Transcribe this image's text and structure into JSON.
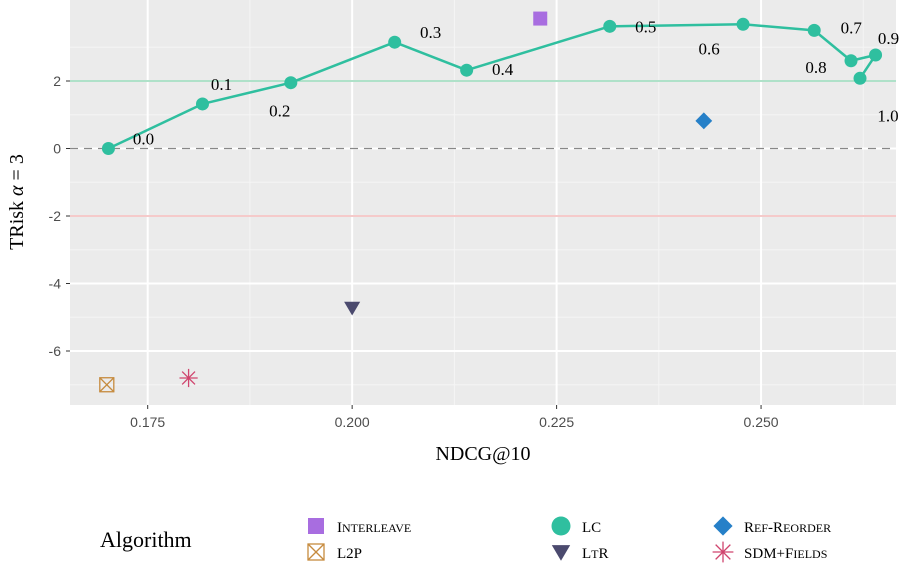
{
  "chart_data": {
    "type": "scatter",
    "xlabel": "NDCG@10",
    "ylabel_text": "TRisk ",
    "ylabel_alpha": "α",
    "ylabel_eq": " = 3",
    "xlim": [
      0.1655,
      0.2665
    ],
    "ylim": [
      -7.6,
      4.4
    ],
    "x_ticks": [
      0.175,
      0.2,
      0.225,
      0.25
    ],
    "x_tick_labels": [
      "0.175",
      "0.200",
      "0.225",
      "0.250"
    ],
    "y_ticks": [
      -6,
      -4,
      -2,
      0,
      2
    ],
    "y_tick_labels": [
      "-6",
      "-4",
      "-2",
      "0",
      "2"
    ],
    "grid": true,
    "reference_lines": [
      {
        "y": 2,
        "color": "#7fcfa9",
        "style": "solid"
      },
      {
        "y": 0,
        "color": "#888888",
        "style": "dashed"
      },
      {
        "y": -2,
        "color": "#efaaaa",
        "style": "solid"
      }
    ],
    "lc_line": {
      "color": "#2fbf9f",
      "points": [
        {
          "x": 0.1702,
          "y": 0.0,
          "label": "0.0"
        },
        {
          "x": 0.1817,
          "y": 1.32,
          "label": "0.1"
        },
        {
          "x": 0.1925,
          "y": 1.95,
          "label": "0.2"
        },
        {
          "x": 0.2052,
          "y": 3.15,
          "label": "0.3"
        },
        {
          "x": 0.214,
          "y": 2.32,
          "label": "0.4"
        },
        {
          "x": 0.2315,
          "y": 3.62,
          "label": "0.5"
        },
        {
          "x": 0.2478,
          "y": 3.68,
          "label": "0.6"
        },
        {
          "x": 0.2565,
          "y": 3.5,
          "label": "0.7"
        },
        {
          "x": 0.261,
          "y": 2.6,
          "label": "0.8"
        },
        {
          "x": 0.264,
          "y": 2.77,
          "label": "0.9"
        },
        {
          "x": 0.2621,
          "y": 2.08,
          "label": "1.0"
        }
      ]
    },
    "series": [
      {
        "name": "Interleave",
        "marker": "square",
        "color": "#a86de0",
        "x": 0.223,
        "y": 3.85
      },
      {
        "name": "L2P",
        "marker": "crossed-box",
        "color": "#c68b3e",
        "x": 0.17,
        "y": -7.0
      },
      {
        "name": "LC",
        "marker": "circle",
        "color": "#2fbf9f",
        "x": null,
        "y": null
      },
      {
        "name": "LtR",
        "marker": "triangle-down",
        "color": "#4b4a6e",
        "x": 0.2,
        "y": -4.72
      },
      {
        "name": "Ref-Reorder",
        "marker": "diamond",
        "color": "#2680c8",
        "x": 0.243,
        "y": 0.82
      },
      {
        "name": "SDM+Fields",
        "marker": "asterisk",
        "color": "#d0456e",
        "x": 0.18,
        "y": -6.8
      }
    ],
    "legend": {
      "title": "Algorithm",
      "position": "bottom"
    }
  }
}
